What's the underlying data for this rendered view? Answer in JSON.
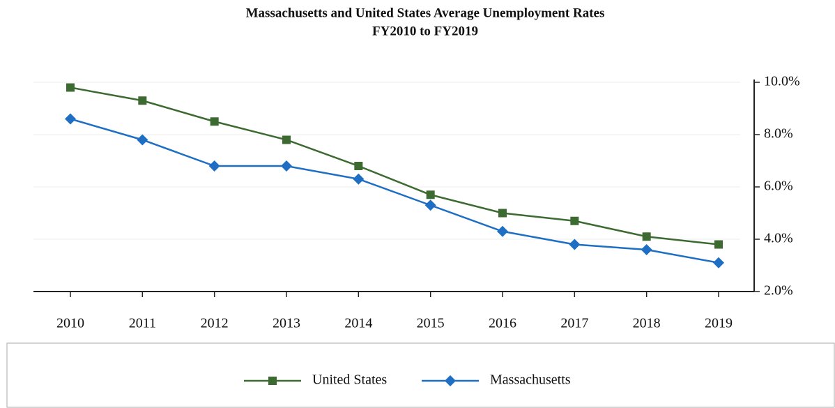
{
  "chart_data": {
    "type": "line",
    "title": "Massachusetts and United States Average Unemployment Rates",
    "subtitle": "FY2010 to FY2019",
    "categories": [
      "2010",
      "2011",
      "2012",
      "2013",
      "2014",
      "2015",
      "2016",
      "2017",
      "2018",
      "2019"
    ],
    "series": [
      {
        "name": "United States",
        "color": "#3c6a30",
        "marker": "square",
        "values": [
          9.8,
          9.3,
          8.5,
          7.8,
          6.8,
          5.7,
          5.0,
          4.7,
          4.1,
          3.8
        ]
      },
      {
        "name": "Massachusetts",
        "color": "#1e6fc4",
        "marker": "diamond",
        "values": [
          8.6,
          7.8,
          6.8,
          6.8,
          6.3,
          5.3,
          4.3,
          3.8,
          3.6,
          3.1
        ]
      }
    ],
    "ylim": [
      2,
      10
    ],
    "yticks": [
      {
        "value": 2,
        "label": "2.0%"
      },
      {
        "value": 4,
        "label": "4.0%"
      },
      {
        "value": 6,
        "label": "6.0%"
      },
      {
        "value": 8,
        "label": "8.0%"
      },
      {
        "value": 10,
        "label": "10.0%"
      }
    ],
    "y_axis_position": "right",
    "grid": true,
    "legend": "bottom"
  }
}
